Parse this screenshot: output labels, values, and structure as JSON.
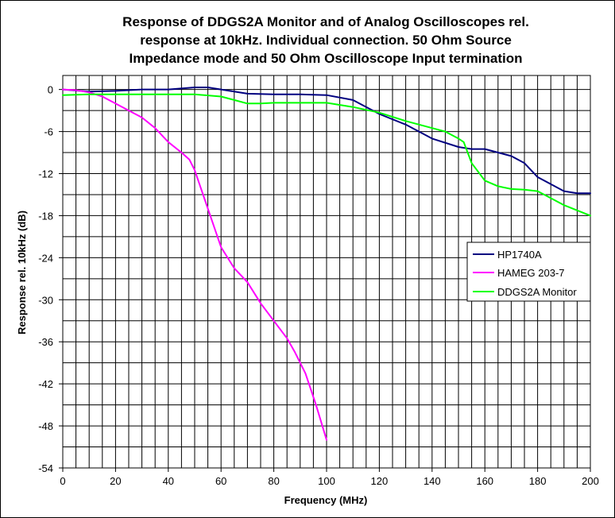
{
  "chart_data": {
    "type": "line",
    "title_lines": [
      "Response of DDGS2A Monitor and of Analog Oscilloscopes rel.",
      "response at 10kHz. Individual connection. 50 Ohm Source",
      "Impedance mode and 50 Ohm Oscilloscope Input termination"
    ],
    "xlabel": "Frequency (MHz)",
    "ylabel": "Response rel. 10kHz (dB)",
    "xlim": [
      0,
      200
    ],
    "ylim": [
      -54,
      2
    ],
    "x_ticks": [
      "0",
      "20",
      "40",
      "60",
      "80",
      "100",
      "120",
      "140",
      "160",
      "180",
      "200"
    ],
    "y_ticks": [
      "0",
      "-6",
      "-12",
      "-18",
      "-24",
      "-30",
      "-36",
      "-42",
      "-48",
      "-54"
    ],
    "grid": true,
    "legend_position": "right",
    "series": [
      {
        "name": "HP1740A",
        "color": "#000080",
        "x": [
          0,
          10,
          20,
          30,
          40,
          50,
          55,
          60,
          70,
          80,
          90,
          100,
          110,
          120,
          130,
          140,
          150,
          155,
          160,
          165,
          170,
          175,
          180,
          190,
          195,
          200
        ],
        "y": [
          0,
          -0.3,
          -0.2,
          0,
          0,
          0.3,
          0.3,
          0,
          -0.6,
          -0.7,
          -0.7,
          -0.8,
          -1.5,
          -3.5,
          -5,
          -7,
          -8.2,
          -8.5,
          -8.5,
          -9,
          -9.5,
          -10.5,
          -12.5,
          -14.5,
          -14.8,
          -14.8
        ]
      },
      {
        "name": "HAMEG 203-7",
        "color": "#ff00ff",
        "x": [
          0,
          5,
          10,
          15,
          20,
          25,
          30,
          35,
          40,
          45,
          48,
          50,
          55,
          60,
          65,
          70,
          75,
          80,
          85,
          88,
          92,
          96,
          100
        ],
        "y": [
          0,
          -0.1,
          -0.4,
          -1,
          -2,
          -3,
          -4,
          -5.5,
          -7.5,
          -9,
          -10,
          -11.5,
          -17,
          -22.5,
          -25.5,
          -27.5,
          -30.5,
          -33,
          -35.5,
          -37.5,
          -40.5,
          -45,
          -50
        ]
      },
      {
        "name": "DDGS2A Monitor",
        "color": "#00ff00",
        "x": [
          0,
          10,
          20,
          30,
          40,
          50,
          60,
          65,
          70,
          75,
          80,
          90,
          100,
          110,
          120,
          130,
          140,
          145,
          150,
          152,
          155,
          160,
          165,
          170,
          175,
          180,
          185,
          190,
          200
        ],
        "y": [
          -0.8,
          -0.7,
          -0.7,
          -0.7,
          -0.7,
          -0.7,
          -1,
          -1.5,
          -2,
          -2,
          -1.9,
          -1.9,
          -1.9,
          -2.5,
          -3.3,
          -4.5,
          -5.5,
          -6,
          -7,
          -7.5,
          -10.5,
          -13,
          -13.8,
          -14.2,
          -14.3,
          -14.5,
          -15.5,
          -16.5,
          -18
        ]
      }
    ]
  }
}
